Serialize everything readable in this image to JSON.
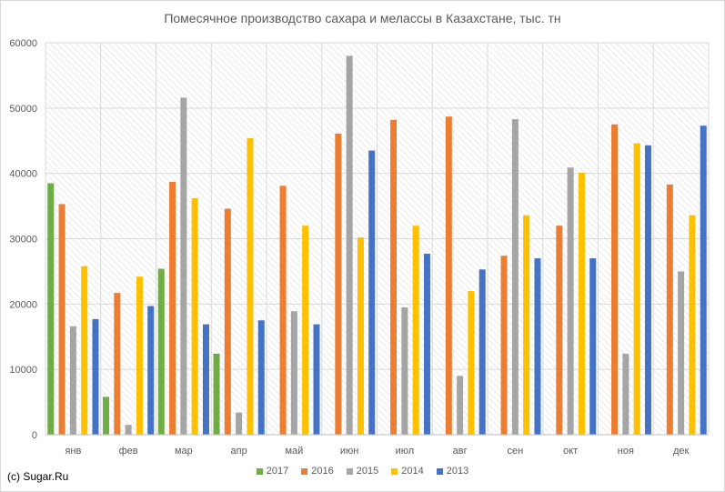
{
  "chart_data": {
    "type": "bar",
    "title": "Помесячное производство сахара и мелассы в Казахстане, тыс. тн",
    "xlabel": "",
    "ylabel": "",
    "ylim": [
      0,
      60000
    ],
    "yticks": [
      0,
      10000,
      20000,
      30000,
      40000,
      50000,
      60000
    ],
    "ytick_labels": [
      "0",
      "10000",
      "20000",
      "30000",
      "40000",
      "50000",
      "60000"
    ],
    "grid": true,
    "legend_position": "bottom",
    "categories": [
      "янв",
      "фев",
      "мар",
      "апр",
      "май",
      "июн",
      "июл",
      "авг",
      "сен",
      "окт",
      "ноя",
      "дек"
    ],
    "series": [
      {
        "name": "2017",
        "color": "#70ad47",
        "values": [
          38500,
          5800,
          25400,
          12400,
          null,
          null,
          null,
          null,
          null,
          null,
          null,
          null
        ]
      },
      {
        "name": "2016",
        "color": "#ed7d31",
        "values": [
          35300,
          21700,
          38700,
          34600,
          38100,
          46100,
          48200,
          48700,
          27400,
          32000,
          47500,
          38300
        ]
      },
      {
        "name": "2015",
        "color": "#a5a5a5",
        "values": [
          16600,
          1500,
          51600,
          3400,
          18900,
          58000,
          19500,
          9000,
          48300,
          40900,
          12400,
          25000
        ]
      },
      {
        "name": "2014",
        "color": "#ffc000",
        "values": [
          25800,
          24200,
          36200,
          45400,
          32000,
          30200,
          32000,
          22000,
          33600,
          40100,
          44600,
          33600
        ]
      },
      {
        "name": "2013",
        "color": "#4472c4",
        "values": [
          17700,
          19700,
          16900,
          17500,
          16900,
          43500,
          27700,
          25300,
          27000,
          27000,
          44300,
          47300
        ]
      }
    ]
  },
  "credit": "(c) Sugar.Ru"
}
